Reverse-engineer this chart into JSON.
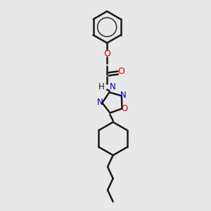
{
  "bg_color": "#e8e8e8",
  "black": "#1a1a1a",
  "blue": "#0000cc",
  "red": "#dd0000",
  "teal": "#008888",
  "bond_lw": 1.8,
  "xlim": [
    0,
    10
  ],
  "ylim": [
    0,
    14
  ]
}
